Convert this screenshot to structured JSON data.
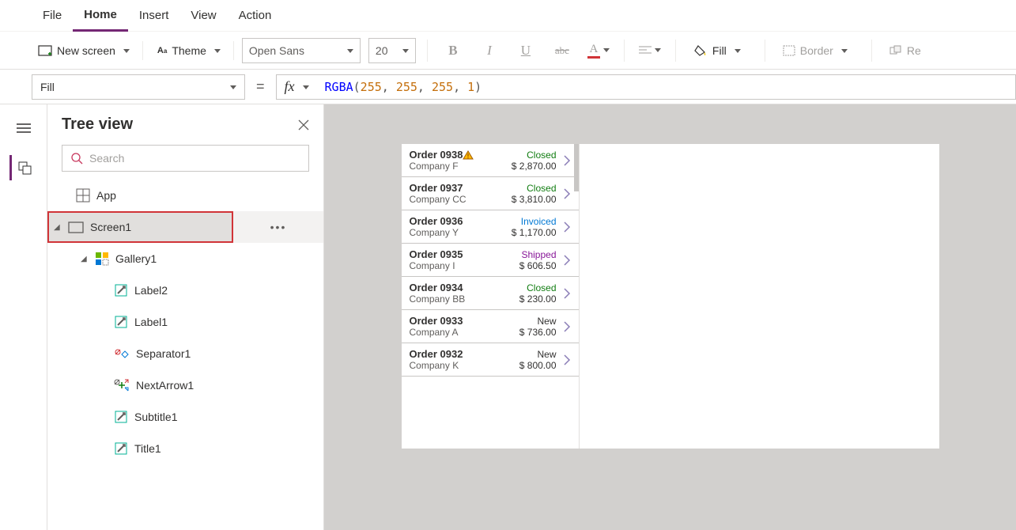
{
  "menubar": {
    "items": [
      "File",
      "Home",
      "Insert",
      "View",
      "Action"
    ],
    "active": "Home"
  },
  "ribbon": {
    "newScreen": "New screen",
    "theme": "Theme",
    "font": "Open Sans",
    "fontSize": "20",
    "fill": "Fill",
    "border": "Border",
    "re": "Re"
  },
  "formulaBar": {
    "property": "Fill",
    "fn": "RGBA",
    "args": [
      "255",
      "255",
      "255",
      "1"
    ]
  },
  "treePanel": {
    "title": "Tree view",
    "searchPlaceholder": "Search",
    "items": [
      {
        "name": "app",
        "label": "App",
        "indent": 0,
        "toggle": false,
        "icon": "app"
      },
      {
        "name": "screen1",
        "label": "Screen1",
        "indent": 0,
        "toggle": true,
        "icon": "screen",
        "selected": true,
        "highlight": true,
        "more": true
      },
      {
        "name": "gallery1",
        "label": "Gallery1",
        "indent": 1,
        "toggle": true,
        "icon": "gallery"
      },
      {
        "name": "label2",
        "label": "Label2",
        "indent": 2,
        "toggle": false,
        "icon": "label"
      },
      {
        "name": "label1",
        "label": "Label1",
        "indent": 2,
        "toggle": false,
        "icon": "label"
      },
      {
        "name": "separator1",
        "label": "Separator1",
        "indent": 2,
        "toggle": false,
        "icon": "separator"
      },
      {
        "name": "nextarrow1",
        "label": "NextArrow1",
        "indent": 2,
        "toggle": false,
        "icon": "nextarrow"
      },
      {
        "name": "subtitle1",
        "label": "Subtitle1",
        "indent": 2,
        "toggle": false,
        "icon": "label"
      },
      {
        "name": "title1",
        "label": "Title1",
        "indent": 2,
        "toggle": false,
        "icon": "label"
      }
    ]
  },
  "statusColors": {
    "Closed": "#107c10",
    "Invoiced": "#0078d4",
    "Shipped": "#881798",
    "New": "#323130"
  },
  "gallery": {
    "items": [
      {
        "title": "Order 0938",
        "sub": "Company F",
        "status": "Closed",
        "amount": "$ 2,870.00",
        "warn": true
      },
      {
        "title": "Order 0937",
        "sub": "Company CC",
        "status": "Closed",
        "amount": "$ 3,810.00"
      },
      {
        "title": "Order 0936",
        "sub": "Company Y",
        "status": "Invoiced",
        "amount": "$ 1,170.00"
      },
      {
        "title": "Order 0935",
        "sub": "Company I",
        "status": "Shipped",
        "amount": "$ 606.50"
      },
      {
        "title": "Order 0934",
        "sub": "Company BB",
        "status": "Closed",
        "amount": "$ 230.00"
      },
      {
        "title": "Order 0933",
        "sub": "Company A",
        "status": "New",
        "amount": "$ 736.00"
      },
      {
        "title": "Order 0932",
        "sub": "Company K",
        "status": "New",
        "amount": "$ 800.00"
      }
    ]
  }
}
